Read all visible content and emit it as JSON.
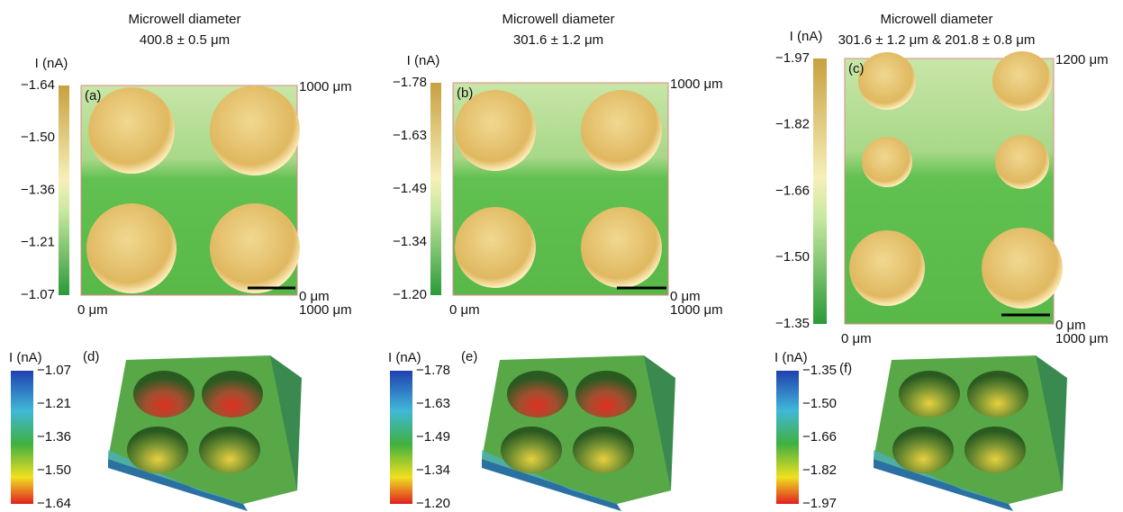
{
  "panels": [
    {
      "title": [
        "Microwell diameter",
        "400.8 ± 0.5 μm"
      ],
      "letter": "(a)",
      "colorbar_label": "I (nA)",
      "colorbar_ticks": [
        "−1.64",
        "−1.50",
        "−1.36",
        "−1.21",
        "−1.07"
      ],
      "axis_labels": {
        "x_start": "0 μm",
        "x_end": "1000 μm",
        "y_start": "0 μm",
        "y_end": "1000 μm"
      }
    },
    {
      "title": [
        "Microwell diameter",
        "301.6 ± 1.2 μm"
      ],
      "letter": "(b)",
      "colorbar_label": "I (nA)",
      "colorbar_ticks": [
        "−1.78",
        "−1.63",
        "−1.49",
        "−1.34",
        "−1.20"
      ],
      "axis_labels": {
        "x_start": "0 μm",
        "x_end": "1000 μm",
        "y_start": "0 μm",
        "y_end": "1000 μm"
      }
    },
    {
      "title": [
        "Microwell diameter",
        "301.6 ± 1.2 μm & 201.8 ± 0.8 μm"
      ],
      "letter": "(c)",
      "colorbar_label": "I (nA)",
      "colorbar_ticks": [
        "−1.97",
        "−1.82",
        "−1.66",
        "−1.50",
        "−1.35"
      ],
      "axis_labels": {
        "x_start": "0 μm",
        "x_end": "1000 μm",
        "y_start": "0 μm",
        "y_end": "1200 μm"
      }
    }
  ],
  "surfaces": [
    {
      "letter": "(d)",
      "colorbar_label": "I (nA)",
      "colorbar_ticks": [
        "−1.07",
        "−1.21",
        "−1.36",
        "−1.50",
        "−1.64"
      ]
    },
    {
      "letter": "(e)",
      "colorbar_label": "I (nA)",
      "colorbar_ticks": [
        "−1.78",
        "−1.63",
        "−1.49",
        "−1.34",
        "−1.20"
      ]
    },
    {
      "letter": "(f)",
      "colorbar_label": "I (nA)",
      "colorbar_ticks": [
        "−1.35",
        "−1.50",
        "−1.66",
        "−1.82",
        "−1.97"
      ]
    }
  ]
}
